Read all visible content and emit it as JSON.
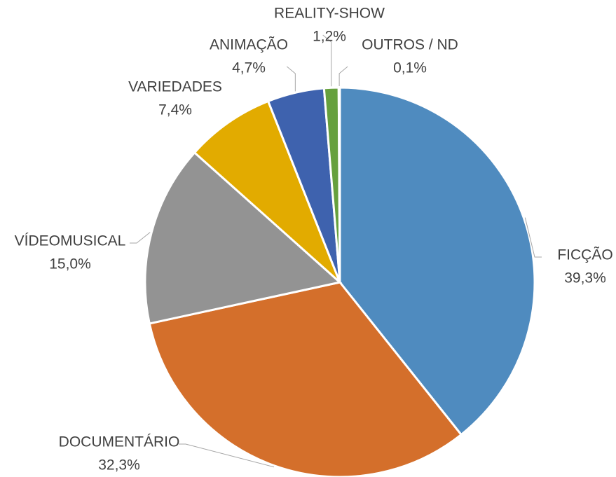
{
  "chart_data": {
    "type": "pie",
    "categories": [
      "FICÇÃO",
      "DOCUMENTÁRIO",
      "VÍDEOMUSICAL",
      "VARIEDADES",
      "ANIMAÇÃO",
      "REALITY-SHOW",
      "OUTROS / ND"
    ],
    "values": [
      39.3,
      32.3,
      15.0,
      7.4,
      4.7,
      1.2,
      0.1
    ],
    "value_labels": [
      "39,3%",
      "32,3%",
      "15,0%",
      "7,4%",
      "4,7%",
      "1,2%",
      "0,1%"
    ],
    "colors": [
      "#4f8bbf",
      "#d46f2b",
      "#939393",
      "#e2ab00",
      "#3e62ae",
      "#66a03d",
      "#7aa7d6"
    ]
  }
}
